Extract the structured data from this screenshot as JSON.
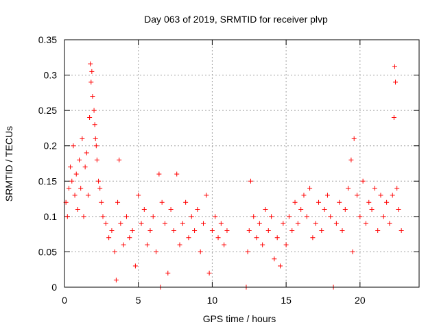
{
  "chart_data": {
    "type": "scatter",
    "title": "Day 063 of 2019, SRMTID for receiver plvp",
    "xlabel": "GPS time / hours",
    "ylabel": "SRMTID / TECUs",
    "xlim": [
      0,
      24
    ],
    "ylim": [
      0,
      0.35
    ],
    "x_ticks": [
      0,
      5,
      10,
      15,
      20
    ],
    "y_ticks": [
      0,
      0.05,
      0.1,
      0.15,
      0.2,
      0.25,
      0.3,
      0.35
    ],
    "x_tick_labels": [
      "0",
      "5",
      "10",
      "15",
      "20"
    ],
    "y_tick_labels": [
      "0",
      "0.05",
      "0.1",
      "0.15",
      "0.2",
      "0.25",
      "0.3",
      "0.35"
    ],
    "grid": true,
    "marker": "plus",
    "color": "#ff0000",
    "series": [
      {
        "name": "SRMTID",
        "points": [
          [
            0.1,
            0.12
          ],
          [
            0.2,
            0.1
          ],
          [
            0.3,
            0.14
          ],
          [
            0.4,
            0.17
          ],
          [
            0.5,
            0.15
          ],
          [
            0.6,
            0.2
          ],
          [
            0.7,
            0.13
          ],
          [
            0.8,
            0.16
          ],
          [
            0.9,
            0.11
          ],
          [
            1.0,
            0.18
          ],
          [
            1.1,
            0.14
          ],
          [
            1.2,
            0.21
          ],
          [
            1.3,
            0.1
          ],
          [
            1.4,
            0.17
          ],
          [
            1.5,
            0.19
          ],
          [
            1.6,
            0.13
          ],
          [
            1.7,
            0.24
          ],
          [
            1.75,
            0.316
          ],
          [
            1.8,
            0.29
          ],
          [
            1.85,
            0.305
          ],
          [
            1.9,
            0.27
          ],
          [
            2.0,
            0.25
          ],
          [
            2.05,
            0.23
          ],
          [
            2.1,
            0.21
          ],
          [
            2.15,
            0.2
          ],
          [
            2.2,
            0.18
          ],
          [
            2.3,
            0.15
          ],
          [
            2.4,
            0.14
          ],
          [
            2.5,
            0.12
          ],
          [
            2.6,
            0.1
          ],
          [
            2.8,
            0.09
          ],
          [
            3.0,
            0.07
          ],
          [
            3.2,
            0.08
          ],
          [
            3.4,
            0.05
          ],
          [
            3.5,
            0.01
          ],
          [
            3.6,
            0.12
          ],
          [
            3.7,
            0.18
          ],
          [
            3.8,
            0.09
          ],
          [
            4.0,
            0.06
          ],
          [
            4.2,
            0.1
          ],
          [
            4.4,
            0.07
          ],
          [
            4.6,
            0.08
          ],
          [
            4.8,
            0.03
          ],
          [
            5.0,
            0.13
          ],
          [
            5.2,
            0.09
          ],
          [
            5.4,
            0.11
          ],
          [
            5.6,
            0.06
          ],
          [
            5.8,
            0.08
          ],
          [
            6.0,
            0.1
          ],
          [
            6.2,
            0.05
          ],
          [
            6.4,
            0.16
          ],
          [
            6.5,
            0.0
          ],
          [
            6.6,
            0.12
          ],
          [
            6.8,
            0.09
          ],
          [
            7.0,
            0.02
          ],
          [
            7.2,
            0.11
          ],
          [
            7.4,
            0.08
          ],
          [
            7.6,
            0.16
          ],
          [
            7.8,
            0.06
          ],
          [
            8.0,
            0.09
          ],
          [
            8.2,
            0.12
          ],
          [
            8.4,
            0.07
          ],
          [
            8.6,
            0.1
          ],
          [
            8.8,
            0.08
          ],
          [
            9.0,
            0.11
          ],
          [
            9.2,
            0.05
          ],
          [
            9.4,
            0.09
          ],
          [
            9.6,
            0.13
          ],
          [
            9.8,
            0.02
          ],
          [
            10.0,
            0.08
          ],
          [
            10.2,
            0.1
          ],
          [
            10.4,
            0.07
          ],
          [
            10.6,
            0.09
          ],
          [
            10.8,
            0.06
          ],
          [
            11.0,
            0.08
          ],
          [
            12.3,
            0.0
          ],
          [
            12.4,
            0.05
          ],
          [
            12.5,
            0.08
          ],
          [
            12.6,
            0.15
          ],
          [
            12.8,
            0.1
          ],
          [
            13.0,
            0.07
          ],
          [
            13.2,
            0.09
          ],
          [
            13.4,
            0.06
          ],
          [
            13.6,
            0.11
          ],
          [
            13.8,
            0.08
          ],
          [
            14.0,
            0.1
          ],
          [
            14.2,
            0.04
          ],
          [
            14.4,
            0.07
          ],
          [
            14.6,
            0.03
          ],
          [
            14.8,
            0.09
          ],
          [
            15.0,
            0.06
          ],
          [
            15.2,
            0.1
          ],
          [
            15.4,
            0.08
          ],
          [
            15.6,
            0.12
          ],
          [
            15.8,
            0.09
          ],
          [
            16.0,
            0.11
          ],
          [
            16.2,
            0.13
          ],
          [
            16.4,
            0.1
          ],
          [
            16.6,
            0.14
          ],
          [
            16.8,
            0.07
          ],
          [
            17.0,
            0.09
          ],
          [
            17.2,
            0.12
          ],
          [
            17.4,
            0.08
          ],
          [
            17.6,
            0.11
          ],
          [
            17.8,
            0.13
          ],
          [
            18.0,
            0.1
          ],
          [
            18.2,
            0.0
          ],
          [
            18.4,
            0.09
          ],
          [
            18.6,
            0.12
          ],
          [
            18.8,
            0.08
          ],
          [
            19.0,
            0.11
          ],
          [
            19.2,
            0.14
          ],
          [
            19.4,
            0.18
          ],
          [
            19.5,
            0.05
          ],
          [
            19.6,
            0.21
          ],
          [
            19.8,
            0.13
          ],
          [
            20.0,
            0.1
          ],
          [
            20.2,
            0.15
          ],
          [
            20.4,
            0.09
          ],
          [
            20.6,
            0.12
          ],
          [
            20.8,
            0.11
          ],
          [
            21.0,
            0.14
          ],
          [
            21.2,
            0.08
          ],
          [
            21.4,
            0.13
          ],
          [
            21.6,
            0.1
          ],
          [
            21.8,
            0.12
          ],
          [
            22.0,
            0.09
          ],
          [
            22.2,
            0.13
          ],
          [
            22.3,
            0.24
          ],
          [
            22.35,
            0.312
          ],
          [
            22.4,
            0.29
          ],
          [
            22.5,
            0.14
          ],
          [
            22.6,
            0.11
          ],
          [
            22.8,
            0.08
          ]
        ]
      }
    ]
  }
}
